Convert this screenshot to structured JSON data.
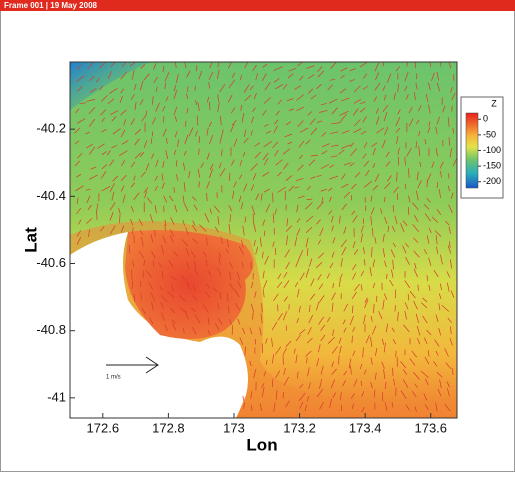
{
  "header": {
    "title": "Frame 001 | 19 May 2008"
  },
  "chart_data": {
    "type": "contour",
    "x_label": "Lon",
    "y_label": "Lat",
    "xlim": [
      172.5,
      173.68
    ],
    "xticks": [
      172.6,
      172.8,
      173,
      173.2,
      173.4,
      173.6
    ],
    "ylim": [
      -41.06,
      -40
    ],
    "yticks": [
      -40.2,
      -40.4,
      -40.6,
      -40.8,
      -41
    ],
    "colorbar": {
      "title": "Z",
      "lim": [
        -220,
        20
      ],
      "ticks": [
        0,
        -50,
        -100,
        -150,
        -200
      ]
    },
    "reference_vector": {
      "label": "1 m/s"
    }
  }
}
